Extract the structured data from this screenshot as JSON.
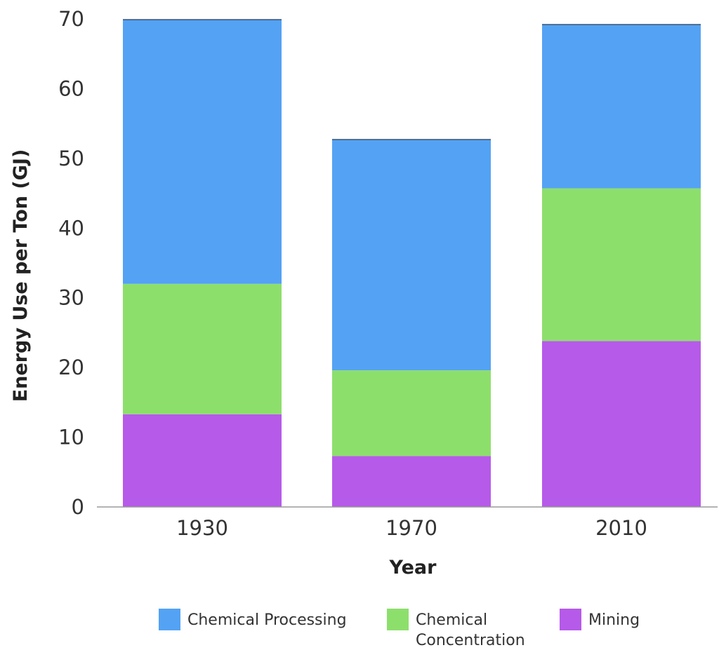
{
  "chart_data": {
    "type": "bar",
    "stacked": true,
    "categories": [
      "1930",
      "1970",
      "2010"
    ],
    "series": [
      {
        "name": "Mining",
        "values": [
          13.3,
          7.3,
          23.8
        ],
        "color": "#b65ae9"
      },
      {
        "name": "Chemical Concentration",
        "values": [
          18.7,
          12.3,
          21.9
        ],
        "color": "#8ddf6c"
      },
      {
        "name": "Chemical Processing",
        "values": [
          37.9,
          33.1,
          23.5
        ],
        "color": "#54a2f4"
      }
    ],
    "title": "",
    "xlabel": "Year",
    "ylabel": "Energy Use per Ton (GJ)",
    "ylim": [
      0,
      70
    ],
    "yticks": [
      "0",
      "10",
      "20",
      "30",
      "40",
      "50",
      "60",
      "70"
    ],
    "grid": false,
    "legend": {
      "position": "bottom",
      "items": [
        {
          "lines": [
            "Chemical Processing"
          ],
          "color": "#54a2f4"
        },
        {
          "lines": [
            "Chemical",
            "Concentration"
          ],
          "color": "#8ddf6c"
        },
        {
          "lines": [
            "Mining"
          ],
          "color": "#b65ae9"
        }
      ]
    }
  }
}
